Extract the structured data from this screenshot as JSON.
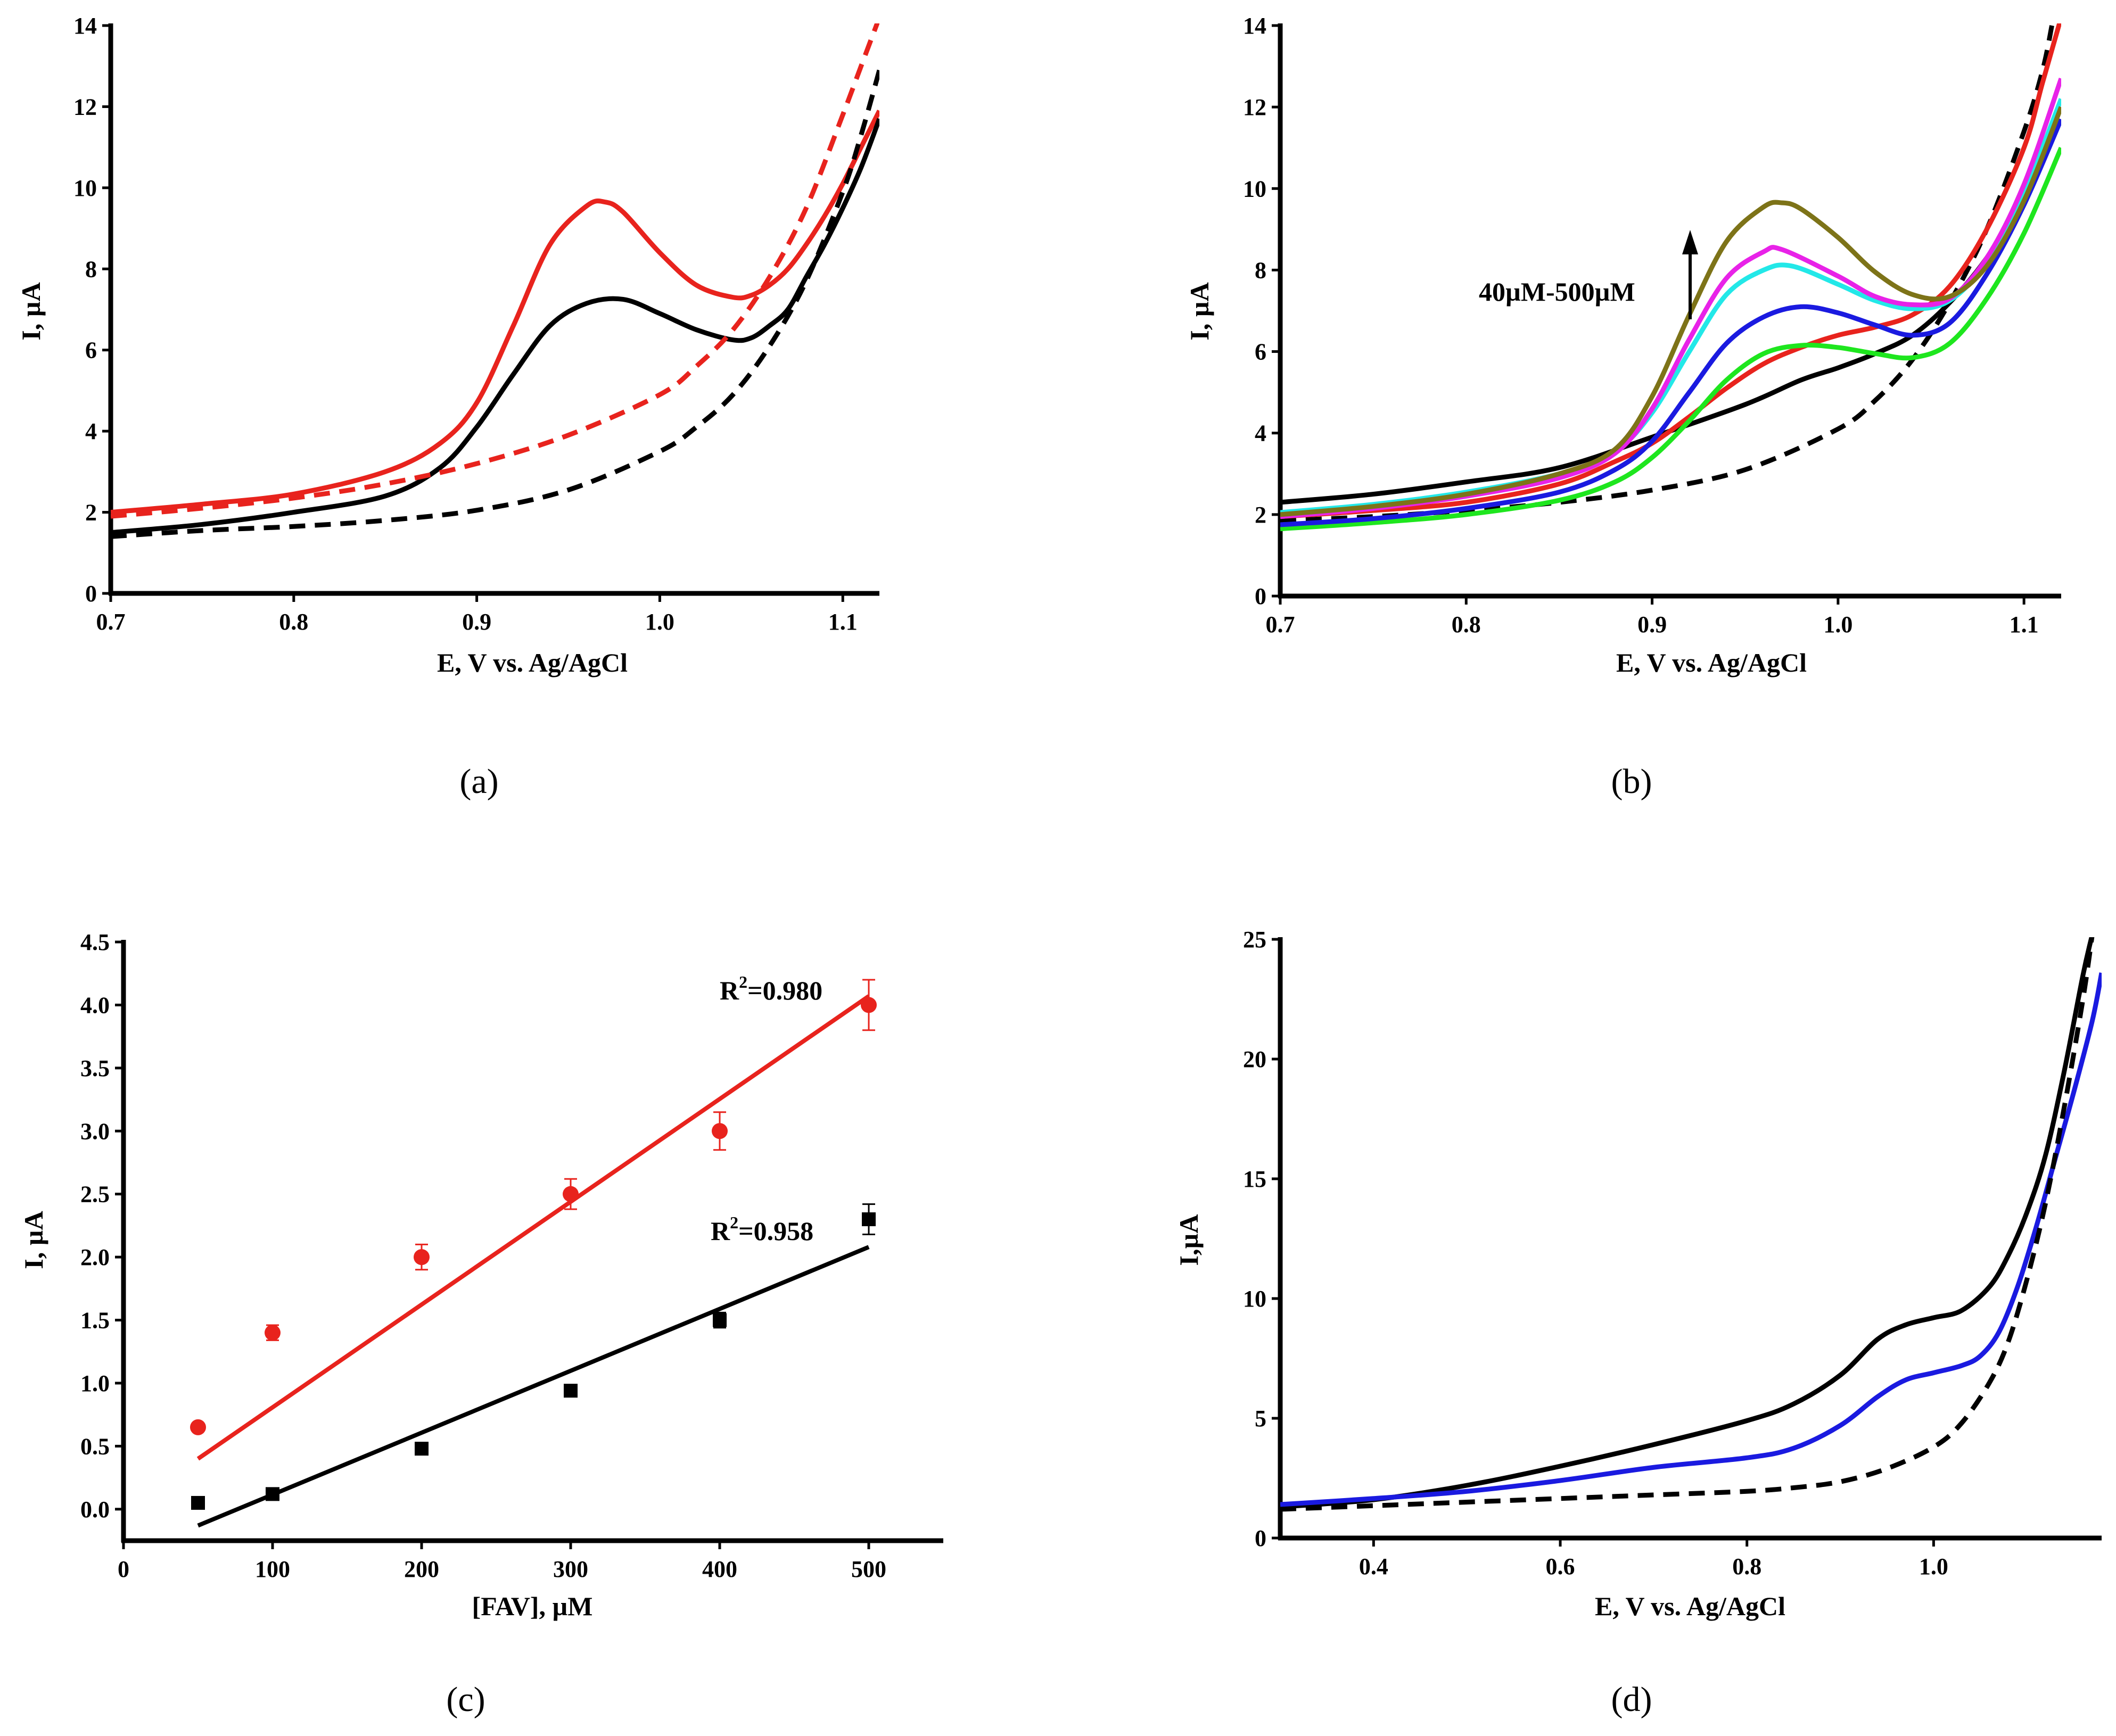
{
  "chart_data": [
    {
      "id": "a",
      "type": "line",
      "panel_label": "(a)",
      "xlabel": "E, V vs. Ag/AgCl",
      "ylabel": "I, µA",
      "xlim": [
        0.7,
        1.12
      ],
      "ylim": [
        0,
        14
      ],
      "xticks": [
        0.7,
        0.8,
        0.9,
        1.0,
        1.1
      ],
      "xtick_labels": [
        "0.7",
        "0.8",
        "0.9",
        "1.0",
        "1.1"
      ],
      "yticks": [
        0,
        2,
        4,
        6,
        8,
        10,
        12,
        14
      ],
      "ytick_labels": [
        "0",
        "2",
        "4",
        "6",
        "8",
        "10",
        "12",
        "14"
      ],
      "series": [
        {
          "name": "red-solid",
          "color": "#e8231d",
          "dash": false,
          "x": [
            0.7,
            0.75,
            0.8,
            0.85,
            0.88,
            0.9,
            0.92,
            0.94,
            0.96,
            0.97,
            0.98,
            1.0,
            1.02,
            1.04,
            1.05,
            1.06,
            1.07,
            1.08,
            1.09,
            1.1,
            1.11,
            1.12
          ],
          "y": [
            2.0,
            2.2,
            2.45,
            3.0,
            3.7,
            4.7,
            6.6,
            8.6,
            9.55,
            9.65,
            9.4,
            8.4,
            7.6,
            7.3,
            7.35,
            7.6,
            8.0,
            8.6,
            9.3,
            10.1,
            11.0,
            11.9
          ]
        },
        {
          "name": "black-solid",
          "color": "#000000",
          "dash": false,
          "x": [
            0.7,
            0.75,
            0.8,
            0.85,
            0.88,
            0.9,
            0.92,
            0.94,
            0.96,
            0.98,
            1.0,
            1.02,
            1.04,
            1.05,
            1.06,
            1.07,
            1.08,
            1.09,
            1.1,
            1.11,
            1.12
          ],
          "y": [
            1.5,
            1.7,
            2.0,
            2.4,
            3.1,
            4.1,
            5.4,
            6.6,
            7.15,
            7.25,
            6.9,
            6.5,
            6.25,
            6.3,
            6.6,
            7.0,
            7.8,
            8.6,
            9.5,
            10.5,
            11.7
          ]
        },
        {
          "name": "red-dashed",
          "color": "#e8231d",
          "dash": true,
          "x": [
            0.7,
            0.75,
            0.8,
            0.85,
            0.9,
            0.95,
            1.0,
            1.02,
            1.04,
            1.06,
            1.08,
            1.1,
            1.11,
            1.12
          ],
          "y": [
            1.9,
            2.1,
            2.35,
            2.7,
            3.2,
            3.9,
            4.9,
            5.6,
            6.5,
            7.8,
            9.5,
            11.8,
            13.0,
            14.2
          ]
        },
        {
          "name": "black-dashed",
          "color": "#000000",
          "dash": true,
          "x": [
            0.7,
            0.75,
            0.8,
            0.85,
            0.9,
            0.95,
            1.0,
            1.02,
            1.04,
            1.06,
            1.08,
            1.1,
            1.11,
            1.12
          ],
          "y": [
            1.4,
            1.55,
            1.65,
            1.8,
            2.05,
            2.55,
            3.5,
            4.1,
            4.9,
            6.1,
            7.7,
            9.9,
            11.3,
            12.9
          ]
        }
      ]
    },
    {
      "id": "b",
      "type": "line",
      "panel_label": "(b)",
      "xlabel": "E, V vs. Ag/AgCl",
      "ylabel": "I, µA",
      "xlim": [
        0.7,
        1.12
      ],
      "ylim": [
        0,
        14
      ],
      "xticks": [
        0.7,
        0.8,
        0.9,
        1.0,
        1.1
      ],
      "xtick_labels": [
        "0.7",
        "0.8",
        "0.9",
        "1.0",
        "1.1"
      ],
      "yticks": [
        0,
        2,
        4,
        6,
        8,
        10,
        12,
        14
      ],
      "ytick_labels": [
        "0",
        "2",
        "4",
        "6",
        "8",
        "10",
        "12",
        "14"
      ],
      "annotation": "40µM-500µM",
      "series": [
        {
          "name": "black-dashed",
          "color": "#000000",
          "dash": true,
          "x": [
            0.7,
            0.75,
            0.8,
            0.85,
            0.9,
            0.95,
            1.0,
            1.02,
            1.04,
            1.06,
            1.08,
            1.1,
            1.11,
            1.115
          ],
          "y": [
            1.85,
            1.95,
            2.1,
            2.3,
            2.6,
            3.1,
            4.1,
            4.8,
            5.8,
            7.2,
            9.0,
            11.4,
            12.9,
            14.0
          ]
        },
        {
          "name": "black-solid",
          "color": "#000000",
          "dash": false,
          "x": [
            0.7,
            0.75,
            0.8,
            0.85,
            0.9,
            0.95,
            0.98,
            1.0,
            1.02,
            1.04,
            1.06,
            1.08,
            1.1,
            1.12
          ],
          "y": [
            2.3,
            2.5,
            2.8,
            3.15,
            3.9,
            4.7,
            5.3,
            5.6,
            5.95,
            6.4,
            7.2,
            8.3,
            9.8,
            12.0
          ]
        },
        {
          "name": "red",
          "color": "#e8231d",
          "dash": false,
          "x": [
            0.7,
            0.75,
            0.8,
            0.85,
            0.88,
            0.9,
            0.92,
            0.94,
            0.96,
            0.98,
            1.0,
            1.02,
            1.04,
            1.06,
            1.08,
            1.1,
            1.11,
            1.12
          ],
          "y": [
            1.95,
            2.1,
            2.3,
            2.75,
            3.3,
            3.75,
            4.4,
            5.1,
            5.7,
            6.1,
            6.4,
            6.6,
            6.9,
            7.6,
            9.0,
            11.0,
            12.6,
            14.2
          ]
        },
        {
          "name": "green",
          "color": "#1ee61e",
          "dash": false,
          "x": [
            0.7,
            0.75,
            0.8,
            0.85,
            0.88,
            0.9,
            0.92,
            0.94,
            0.96,
            0.98,
            1.0,
            1.02,
            1.04,
            1.06,
            1.08,
            1.1,
            1.12
          ],
          "y": [
            1.65,
            1.8,
            2.0,
            2.35,
            2.8,
            3.4,
            4.3,
            5.3,
            5.95,
            6.15,
            6.1,
            5.95,
            5.85,
            6.2,
            7.3,
            8.9,
            11.0
          ]
        },
        {
          "name": "blue",
          "color": "#1a1ae0",
          "dash": false,
          "x": [
            0.7,
            0.75,
            0.8,
            0.85,
            0.88,
            0.9,
            0.92,
            0.94,
            0.96,
            0.98,
            1.0,
            1.02,
            1.04,
            1.06,
            1.08,
            1.1,
            1.12
          ],
          "y": [
            1.75,
            1.9,
            2.15,
            2.55,
            3.1,
            3.8,
            5.0,
            6.2,
            6.85,
            7.1,
            6.95,
            6.65,
            6.4,
            6.7,
            7.9,
            9.6,
            11.7
          ]
        },
        {
          "name": "cyan",
          "color": "#22e8e8",
          "dash": false,
          "x": [
            0.7,
            0.75,
            0.8,
            0.85,
            0.88,
            0.9,
            0.92,
            0.94,
            0.96,
            0.975,
            1.0,
            1.02,
            1.04,
            1.06,
            1.08,
            1.1,
            1.12
          ],
          "y": [
            2.05,
            2.25,
            2.55,
            3.0,
            3.55,
            4.5,
            6.0,
            7.4,
            8.0,
            8.1,
            7.65,
            7.25,
            7.05,
            7.25,
            8.2,
            9.9,
            12.2
          ]
        },
        {
          "name": "magenta",
          "color": "#e822e8",
          "dash": false,
          "x": [
            0.7,
            0.75,
            0.8,
            0.85,
            0.88,
            0.9,
            0.92,
            0.94,
            0.96,
            0.97,
            1.0,
            1.02,
            1.04,
            1.06,
            1.08,
            1.1,
            1.12
          ],
          "y": [
            1.95,
            2.15,
            2.45,
            2.9,
            3.5,
            4.6,
            6.3,
            7.8,
            8.45,
            8.5,
            7.85,
            7.35,
            7.15,
            7.3,
            8.3,
            10.1,
            12.7
          ]
        },
        {
          "name": "olive",
          "color": "#7d7318",
          "dash": false,
          "x": [
            0.7,
            0.75,
            0.8,
            0.85,
            0.88,
            0.9,
            0.92,
            0.94,
            0.96,
            0.97,
            0.98,
            1.0,
            1.02,
            1.04,
            1.06,
            1.08,
            1.1,
            1.12
          ],
          "y": [
            2.0,
            2.2,
            2.5,
            3.0,
            3.6,
            4.9,
            6.9,
            8.7,
            9.55,
            9.65,
            9.5,
            8.8,
            7.95,
            7.4,
            7.35,
            8.1,
            9.7,
            12.0
          ]
        }
      ]
    },
    {
      "id": "c",
      "type": "scatter",
      "panel_label": "(c)",
      "xlabel": "[FAV], µM",
      "ylabel": "I, µA",
      "xlim": [
        0,
        550
      ],
      "ylim": [
        -0.25,
        4.5
      ],
      "xticks": [
        0,
        100,
        200,
        300,
        400,
        500
      ],
      "xtick_labels": [
        "0",
        "100",
        "200",
        "300",
        "400",
        "500"
      ],
      "yticks": [
        0.0,
        0.5,
        1.0,
        1.5,
        2.0,
        2.5,
        3.0,
        3.5,
        4.0,
        4.5
      ],
      "ytick_labels": [
        "0.0",
        "0.5",
        "1.0",
        "1.5",
        "2.0",
        "2.5",
        "3.0",
        "3.5",
        "4.0",
        "4.5"
      ],
      "series": [
        {
          "name": "red",
          "color": "#e8231d",
          "marker": "circle",
          "x": [
            50,
            100,
            200,
            300,
            400,
            500
          ],
          "y": [
            0.65,
            1.4,
            2.0,
            2.5,
            3.0,
            4.0
          ],
          "err": [
            0.0,
            0.06,
            0.1,
            0.12,
            0.15,
            0.2
          ],
          "fit": {
            "x": [
              50,
              500
            ],
            "y": [
              0.4,
              4.07
            ]
          },
          "r2_prefix": "R",
          "r2_sup": "2",
          "r2_value": "=0.980"
        },
        {
          "name": "black",
          "color": "#000000",
          "marker": "square",
          "x": [
            50,
            100,
            200,
            300,
            400,
            500
          ],
          "y": [
            0.05,
            0.12,
            0.48,
            0.94,
            1.5,
            2.3
          ],
          "err": [
            0.0,
            0.03,
            0.03,
            0.03,
            0.06,
            0.12
          ],
          "fit": {
            "x": [
              50,
              500
            ],
            "y": [
              -0.13,
              2.08
            ]
          },
          "r2_prefix": "R",
          "r2_sup": "2",
          "r2_value": "=0.958"
        }
      ]
    },
    {
      "id": "d",
      "type": "line",
      "panel_label": "(d)",
      "xlabel": "E, V vs. Ag/AgCl",
      "ylabel": "I,µA",
      "xlim": [
        0.3,
        1.18
      ],
      "ylim": [
        0,
        25
      ],
      "xticks": [
        0.4,
        0.6,
        0.8,
        1.0
      ],
      "xtick_labels": [
        "0.4",
        "0.6",
        "0.8",
        "1.0"
      ],
      "yticks": [
        0,
        5,
        10,
        15,
        20,
        25
      ],
      "ytick_labels": [
        "0",
        "5",
        "10",
        "15",
        "20",
        "25"
      ],
      "series": [
        {
          "name": "black-solid",
          "color": "#000000",
          "dash": false,
          "x": [
            0.3,
            0.4,
            0.5,
            0.6,
            0.7,
            0.8,
            0.85,
            0.9,
            0.94,
            0.97,
            1.0,
            1.03,
            1.06,
            1.08,
            1.1,
            1.12,
            1.14,
            1.16,
            1.17
          ],
          "y": [
            1.3,
            1.6,
            2.2,
            3.0,
            3.9,
            4.9,
            5.6,
            6.8,
            8.3,
            8.9,
            9.2,
            9.5,
            10.5,
            11.8,
            13.6,
            16.0,
            19.5,
            23.5,
            25.2
          ]
        },
        {
          "name": "blue",
          "color": "#1a1ae0",
          "dash": false,
          "x": [
            0.3,
            0.4,
            0.5,
            0.6,
            0.7,
            0.8,
            0.85,
            0.9,
            0.94,
            0.97,
            1.0,
            1.03,
            1.05,
            1.07,
            1.09,
            1.11,
            1.13,
            1.15,
            1.17,
            1.18
          ],
          "y": [
            1.4,
            1.65,
            1.95,
            2.4,
            2.95,
            3.35,
            3.75,
            4.7,
            5.9,
            6.6,
            6.9,
            7.2,
            7.6,
            8.6,
            10.5,
            13.0,
            15.8,
            18.6,
            21.6,
            23.6
          ]
        },
        {
          "name": "black-dashed",
          "color": "#000000",
          "dash": true,
          "x": [
            0.3,
            0.4,
            0.5,
            0.6,
            0.7,
            0.8,
            0.85,
            0.9,
            0.95,
            1.0,
            1.03,
            1.06,
            1.08,
            1.1,
            1.12,
            1.14,
            1.16,
            1.17
          ],
          "y": [
            1.2,
            1.35,
            1.5,
            1.65,
            1.8,
            1.95,
            2.1,
            2.35,
            2.9,
            3.8,
            4.8,
            6.5,
            8.2,
            10.8,
            14.0,
            18.0,
            22.5,
            25.2
          ]
        }
      ]
    }
  ]
}
